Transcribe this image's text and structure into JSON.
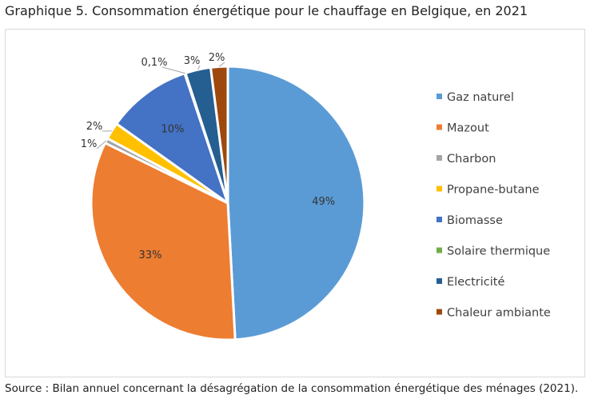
{
  "title": "Graphique 5. Consommation énergétique pour le chauffage en Belgique, en 2021",
  "source": "Source : Bilan annuel concernant la désagrégation de la consommation énergétique des ménages (2021).",
  "chart_data": {
    "type": "pie",
    "legend_position": "right",
    "slices": [
      {
        "name": "Gaz naturel",
        "value": 49,
        "label": "49%",
        "color": "#5b9bd5"
      },
      {
        "name": "Mazout",
        "value": 33,
        "label": "33%",
        "color": "#ed7d31"
      },
      {
        "name": "Charbon",
        "value": 0.6,
        "label": "1%",
        "color": "#a5a5a5"
      },
      {
        "name": "Propane-butane",
        "value": 2,
        "label": "2%",
        "color": "#ffc000"
      },
      {
        "name": "Biomasse",
        "value": 10,
        "label": "10%",
        "color": "#4472c4"
      },
      {
        "name": "Solaire thermique",
        "value": 0.1,
        "label": "0,1%",
        "color": "#70ad47"
      },
      {
        "name": "Electricité",
        "value": 3,
        "label": "3%",
        "color": "#255e91"
      },
      {
        "name": "Chaleur ambiante",
        "value": 2,
        "label": "2%",
        "color": "#9e480e"
      }
    ]
  }
}
